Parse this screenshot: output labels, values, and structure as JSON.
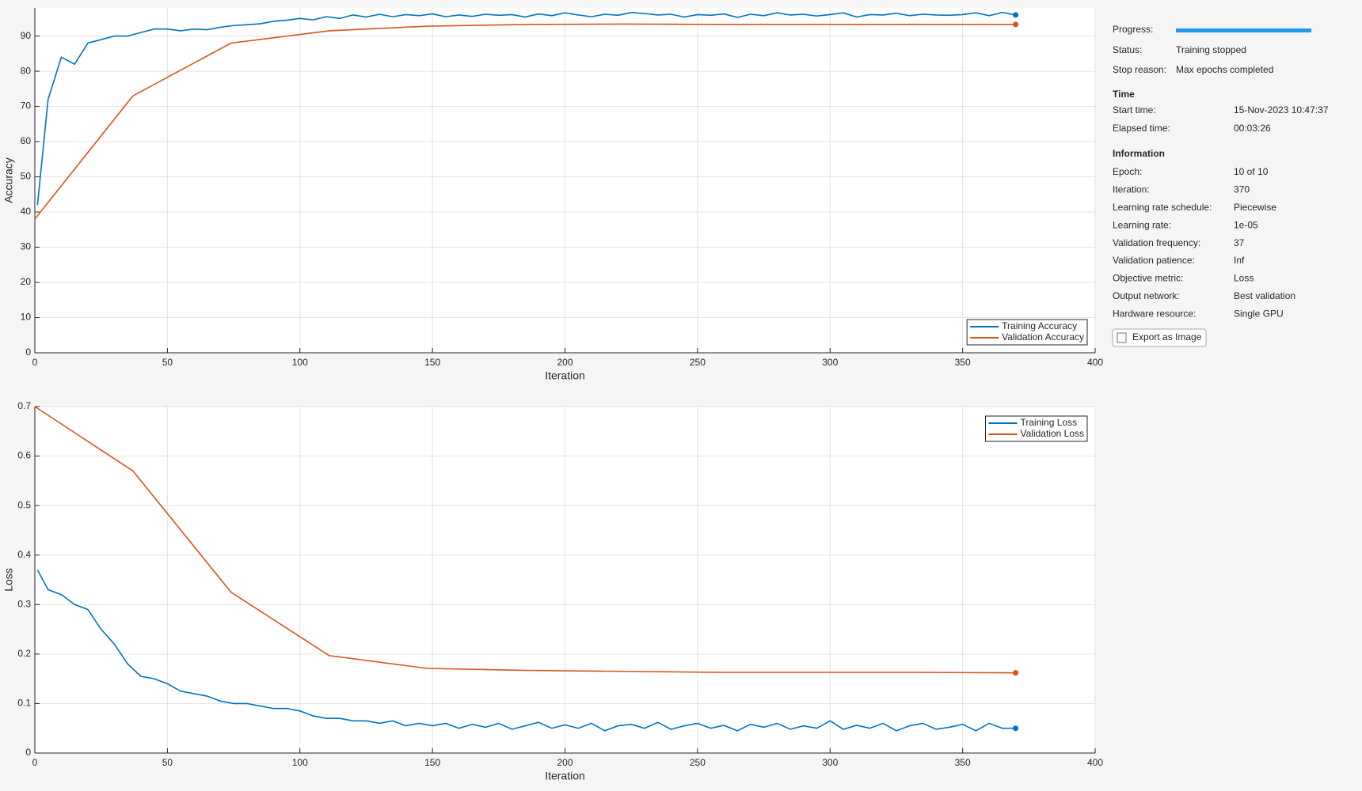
{
  "chart_data": [
    {
      "type": "line",
      "x_label": "Iteration",
      "y_label": "Accuracy",
      "xlim": [
        0,
        400
      ],
      "xticks": [
        0,
        50,
        100,
        150,
        200,
        250,
        300,
        350,
        400
      ],
      "ylim": [
        0,
        98
      ],
      "yticks": [
        0,
        10,
        20,
        30,
        40,
        50,
        60,
        70,
        80,
        90
      ],
      "grid": true,
      "legend": "southeast",
      "series": [
        {
          "name": "Training Accuracy",
          "color": "#0072bd",
          "x": [
            1,
            5,
            10,
            15,
            20,
            25,
            30,
            35,
            40,
            45,
            50,
            55,
            60,
            65,
            70,
            75,
            80,
            85,
            90,
            95,
            100,
            105,
            110,
            115,
            120,
            125,
            130,
            135,
            140,
            145,
            150,
            155,
            160,
            165,
            170,
            175,
            180,
            185,
            190,
            195,
            200,
            205,
            210,
            215,
            220,
            225,
            230,
            235,
            240,
            245,
            250,
            255,
            260,
            265,
            270,
            275,
            280,
            285,
            290,
            295,
            300,
            305,
            310,
            315,
            320,
            325,
            330,
            335,
            340,
            345,
            350,
            355,
            360,
            365,
            370
          ],
          "values": [
            42,
            72,
            84,
            82,
            88,
            89,
            90,
            90,
            91,
            92,
            92,
            91.5,
            92,
            91.8,
            92.5,
            93,
            93.2,
            93.5,
            94.2,
            94.5,
            95,
            94.6,
            95.5,
            95,
            96,
            95.4,
            96.2,
            95.5,
            96.1,
            95.8,
            96.3,
            95.5,
            96,
            95.6,
            96.2,
            95.9,
            96.1,
            95.4,
            96.3,
            95.8,
            96.6,
            96,
            95.5,
            96.2,
            95.9,
            96.7,
            96.4,
            96,
            96.2,
            95.4,
            96.1,
            95.9,
            96.3,
            95.3,
            96.2,
            95.8,
            96.6,
            96,
            96.2,
            95.7,
            96.1,
            96.6,
            95.4,
            96.1,
            96,
            96.5,
            95.8,
            96.2,
            96,
            95.9,
            96.1,
            96.6,
            95.8,
            96.7,
            96
          ]
        },
        {
          "name": "Validation Accuracy",
          "color": "#d95319",
          "x": [
            0,
            37,
            74,
            111,
            148,
            185,
            222,
            259,
            296,
            333,
            370
          ],
          "values": [
            38,
            73,
            88,
            91.5,
            92.8,
            93.3,
            93.4,
            93.3,
            93.3,
            93.3,
            93.3
          ]
        }
      ]
    },
    {
      "type": "line",
      "x_label": "Iteration",
      "y_label": "Loss",
      "xlim": [
        0,
        400
      ],
      "xticks": [
        0,
        50,
        100,
        150,
        200,
        250,
        300,
        350,
        400
      ],
      "ylim": [
        0,
        0.7
      ],
      "yticks": [
        0,
        0.1,
        0.2,
        0.3,
        0.4,
        0.5,
        0.6,
        0.7
      ],
      "grid": true,
      "legend": "northeast",
      "series": [
        {
          "name": "Training Loss",
          "color": "#0072bd",
          "x": [
            1,
            5,
            10,
            15,
            20,
            25,
            30,
            35,
            40,
            45,
            50,
            55,
            60,
            65,
            70,
            75,
            80,
            85,
            90,
            95,
            100,
            105,
            110,
            115,
            120,
            125,
            130,
            135,
            140,
            145,
            150,
            155,
            160,
            165,
            170,
            175,
            180,
            185,
            190,
            195,
            200,
            205,
            210,
            215,
            220,
            225,
            230,
            235,
            240,
            245,
            250,
            255,
            260,
            265,
            270,
            275,
            280,
            285,
            290,
            295,
            300,
            305,
            310,
            315,
            320,
            325,
            330,
            335,
            340,
            345,
            350,
            355,
            360,
            365,
            370
          ],
          "values": [
            0.37,
            0.33,
            0.32,
            0.3,
            0.29,
            0.25,
            0.22,
            0.18,
            0.155,
            0.15,
            0.14,
            0.125,
            0.12,
            0.115,
            0.105,
            0.1,
            0.1,
            0.095,
            0.09,
            0.09,
            0.085,
            0.075,
            0.07,
            0.07,
            0.065,
            0.065,
            0.06,
            0.065,
            0.055,
            0.06,
            0.055,
            0.06,
            0.05,
            0.058,
            0.052,
            0.06,
            0.048,
            0.055,
            0.062,
            0.05,
            0.057,
            0.05,
            0.06,
            0.045,
            0.055,
            0.058,
            0.05,
            0.062,
            0.048,
            0.055,
            0.06,
            0.05,
            0.056,
            0.045,
            0.058,
            0.052,
            0.06,
            0.048,
            0.055,
            0.05,
            0.065,
            0.048,
            0.056,
            0.05,
            0.06,
            0.045,
            0.055,
            0.06,
            0.048,
            0.052,
            0.058,
            0.045,
            0.06,
            0.05,
            0.05
          ]
        },
        {
          "name": "Validation Loss",
          "color": "#d95319",
          "x": [
            0,
            37,
            74,
            111,
            148,
            185,
            222,
            259,
            296,
            333,
            370
          ],
          "values": [
            0.7,
            0.57,
            0.325,
            0.197,
            0.171,
            0.167,
            0.165,
            0.163,
            0.163,
            0.163,
            0.162
          ]
        }
      ]
    }
  ],
  "panel": {
    "progress": {
      "label": "Progress:"
    },
    "status": [
      [
        "Status:",
        "Training stopped"
      ],
      [
        "Stop reason:",
        "Max epochs completed"
      ]
    ],
    "time": {
      "title": "Time",
      "rows": [
        [
          "Start time:",
          "15-Nov-2023 10:47:37"
        ],
        [
          "Elapsed time:",
          "00:03:26"
        ]
      ]
    },
    "information": {
      "title": "Information",
      "rows": [
        [
          "Epoch:",
          "10 of 10"
        ],
        [
          "Iteration:",
          "370"
        ],
        [
          "Learning rate schedule:",
          "Piecewise"
        ],
        [
          "Learning rate:",
          "1e-05"
        ],
        [
          "Validation frequency:",
          "37"
        ],
        [
          "Validation patience:",
          "Inf"
        ],
        [
          "Objective metric:",
          "Loss"
        ],
        [
          "Output network:",
          "Best validation"
        ],
        [
          "Hardware resource:",
          "Single GPU"
        ]
      ]
    },
    "button": "Export as Image"
  }
}
